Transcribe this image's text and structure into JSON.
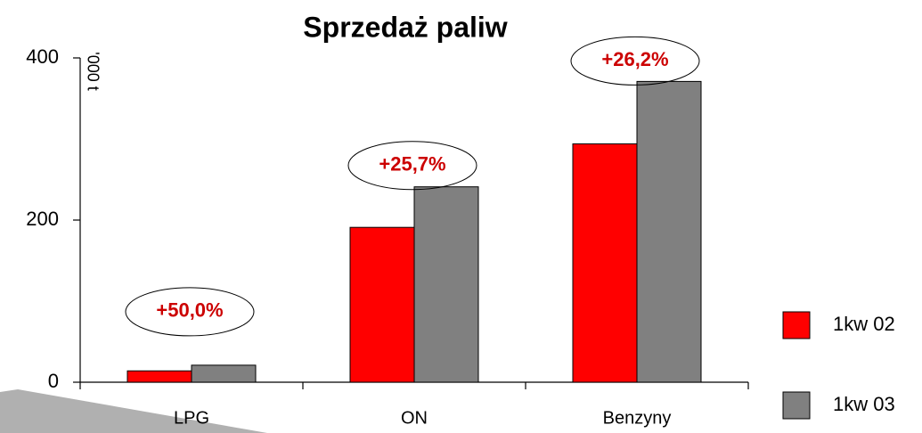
{
  "chart_data": {
    "type": "bar",
    "title": "Sprzedaż paliw",
    "y_label": "'000 t",
    "categories": [
      "LPG",
      "ON",
      "Benzyny"
    ],
    "series": [
      {
        "name": "1kw 02",
        "color": "#ff0000",
        "values": [
          14,
          191,
          294
        ]
      },
      {
        "name": "1kw 03",
        "color": "#808080",
        "values": [
          21,
          241,
          371
        ]
      }
    ],
    "annotations": [
      "+50,0%",
      "+25,7%",
      "+26,2%"
    ],
    "annotation_color": "#cc0000",
    "ylim": [
      0,
      400
    ],
    "yticks": [
      0,
      200,
      400
    ],
    "legend": "right"
  }
}
